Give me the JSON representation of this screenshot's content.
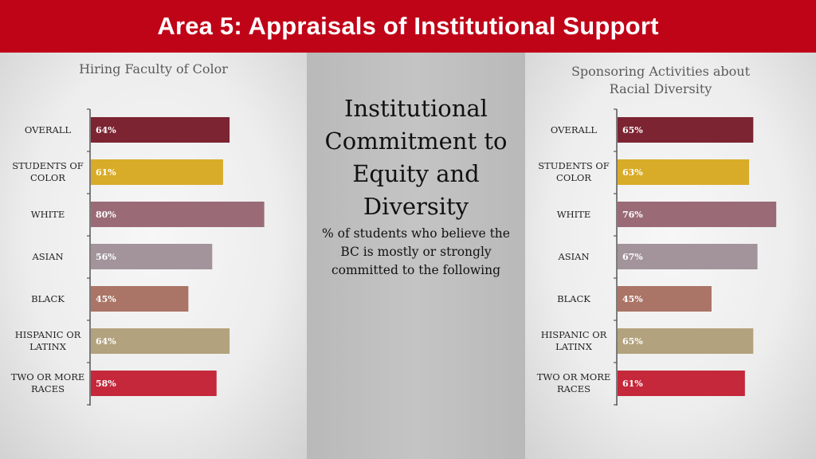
{
  "header": {
    "title": "Area 5: Appraisals of Institutional Support"
  },
  "center": {
    "title": "Institutional Commitment to Equity and Diversity",
    "subtitle": "% of students who believe the BC is mostly or strongly committed to the following"
  },
  "colors": {
    "header_bg": "#c00418",
    "overall": "#7c2431",
    "students_of_color": "#d8ac28",
    "white": "#9a6b76",
    "asian": "#a2949a",
    "black": "#aa7466",
    "hispanic_or_latinx": "#b3a27e",
    "two_or_more_races": "#c4283a"
  },
  "chart_data": [
    {
      "type": "bar",
      "orientation": "horizontal",
      "title": "Hiring Faculty of Color",
      "categories": [
        "OVERALL",
        "STUDENTS OF COLOR",
        "WHITE",
        "ASIAN",
        "BLACK",
        "HISPANIC OR LATINX",
        "TWO OR MORE RACES"
      ],
      "values": [
        64,
        61,
        80,
        56,
        45,
        64,
        58
      ],
      "labels": [
        "64%",
        "61%",
        "80%",
        "56%",
        "45%",
        "64%",
        "58%"
      ],
      "xlim": [
        0,
        100
      ]
    },
    {
      "type": "bar",
      "orientation": "horizontal",
      "title": "Sponsoring Activities about Racial Diversity",
      "categories": [
        "OVERALL",
        "STUDENTS OF COLOR",
        "WHITE",
        "ASIAN",
        "BLACK",
        "HISPANIC OR LATINX",
        "TWO OR MORE RACES"
      ],
      "values": [
        65,
        63,
        76,
        67,
        45,
        65,
        61
      ],
      "labels": [
        "65%",
        "63%",
        "76%",
        "67%",
        "45%",
        "65%",
        "61%"
      ],
      "xlim": [
        0,
        100
      ]
    }
  ]
}
